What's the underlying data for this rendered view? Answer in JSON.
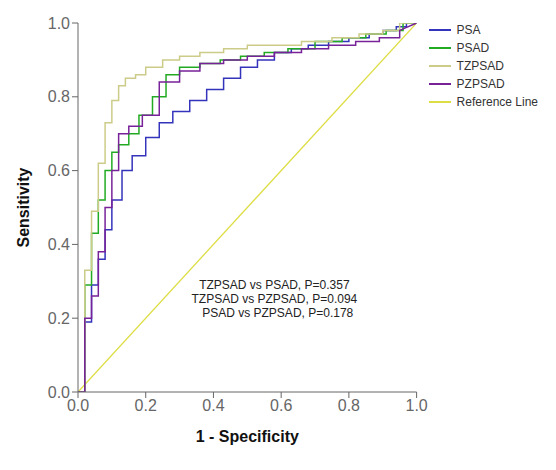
{
  "chart_data": {
    "type": "line",
    "title": "",
    "xlabel": "1 - Specificity",
    "ylabel": "Sensitivity",
    "xlim": [
      0.0,
      1.0
    ],
    "ylim": [
      0.0,
      1.0
    ],
    "xticks": [
      {
        "value": 0.0,
        "label": "0.0"
      },
      0.2,
      0.4,
      0.6,
      0.8,
      {
        "value": 1.0,
        "label": "1.0"
      }
    ],
    "yticks": [
      {
        "value": 0.0,
        "label": "0.0"
      },
      0.2,
      0.4,
      0.6,
      0.8,
      {
        "value": 1.0,
        "label": "1.0"
      }
    ],
    "grid": false,
    "legend": "right",
    "annotations": [
      {
        "text": "TZPSAD vs PSAD, P=0.357\nTZPSAD vs PZPSAD, P=0.094\n  PSAD vs PZPSAD, P=0.178",
        "x": 0.58,
        "y": 0.25
      }
    ],
    "series": [
      {
        "name": "PSA",
        "color": "#3333bb",
        "x": [
          0.0,
          0.02,
          0.02,
          0.04,
          0.04,
          0.06,
          0.06,
          0.08,
          0.08,
          0.1,
          0.1,
          0.13,
          0.13,
          0.16,
          0.16,
          0.2,
          0.2,
          0.24,
          0.24,
          0.28,
          0.28,
          0.33,
          0.33,
          0.38,
          0.38,
          0.43,
          0.43,
          0.48,
          0.48,
          0.53,
          0.53,
          0.58,
          0.58,
          0.63,
          0.63,
          0.68,
          0.68,
          0.74,
          0.74,
          0.8,
          0.8,
          0.86,
          0.86,
          0.9,
          0.9,
          0.94,
          0.94,
          0.97,
          0.97,
          1.0
        ],
        "values": [
          0.0,
          0.0,
          0.19,
          0.19,
          0.29,
          0.29,
          0.36,
          0.36,
          0.44,
          0.44,
          0.52,
          0.52,
          0.6,
          0.6,
          0.64,
          0.64,
          0.69,
          0.69,
          0.73,
          0.73,
          0.76,
          0.76,
          0.79,
          0.79,
          0.82,
          0.82,
          0.85,
          0.85,
          0.88,
          0.88,
          0.9,
          0.9,
          0.92,
          0.92,
          0.93,
          0.93,
          0.94,
          0.94,
          0.95,
          0.95,
          0.96,
          0.96,
          0.97,
          0.97,
          0.98,
          0.98,
          0.99,
          0.99,
          1.0,
          1.0
        ]
      },
      {
        "name": "PSAD",
        "color": "#22aa22",
        "x": [
          0.0,
          0.02,
          0.02,
          0.04,
          0.04,
          0.06,
          0.06,
          0.08,
          0.08,
          0.1,
          0.1,
          0.12,
          0.12,
          0.15,
          0.15,
          0.18,
          0.18,
          0.22,
          0.22,
          0.26,
          0.26,
          0.3,
          0.3,
          0.36,
          0.36,
          0.42,
          0.42,
          0.48,
          0.48,
          0.55,
          0.55,
          0.62,
          0.62,
          0.7,
          0.7,
          0.78,
          0.78,
          0.85,
          0.85,
          0.91,
          0.91,
          0.96,
          0.96,
          1.0
        ],
        "values": [
          0.0,
          0.0,
          0.29,
          0.29,
          0.43,
          0.43,
          0.52,
          0.52,
          0.6,
          0.6,
          0.65,
          0.65,
          0.67,
          0.67,
          0.7,
          0.7,
          0.75,
          0.75,
          0.8,
          0.8,
          0.86,
          0.86,
          0.88,
          0.88,
          0.89,
          0.89,
          0.9,
          0.9,
          0.91,
          0.91,
          0.92,
          0.92,
          0.93,
          0.93,
          0.95,
          0.95,
          0.96,
          0.96,
          0.97,
          0.97,
          0.98,
          0.98,
          1.0,
          1.0
        ]
      },
      {
        "name": "TZPSAD",
        "color": "#cccc88",
        "x": [
          0.0,
          0.02,
          0.02,
          0.04,
          0.04,
          0.06,
          0.06,
          0.08,
          0.08,
          0.1,
          0.1,
          0.12,
          0.12,
          0.14,
          0.14,
          0.17,
          0.17,
          0.2,
          0.2,
          0.25,
          0.25,
          0.3,
          0.3,
          0.36,
          0.36,
          0.43,
          0.43,
          0.5,
          0.5,
          0.58,
          0.58,
          0.66,
          0.66,
          0.75,
          0.75,
          0.83,
          0.83,
          0.9,
          0.9,
          0.95,
          0.95,
          1.0
        ],
        "values": [
          0.0,
          0.0,
          0.33,
          0.33,
          0.49,
          0.49,
          0.62,
          0.62,
          0.73,
          0.73,
          0.79,
          0.79,
          0.83,
          0.83,
          0.85,
          0.85,
          0.86,
          0.86,
          0.88,
          0.88,
          0.9,
          0.9,
          0.91,
          0.91,
          0.92,
          0.92,
          0.93,
          0.93,
          0.94,
          0.94,
          0.94,
          0.94,
          0.95,
          0.95,
          0.96,
          0.96,
          0.97,
          0.97,
          0.98,
          0.98,
          1.0,
          1.0
        ]
      },
      {
        "name": "PZPSAD",
        "color": "#772299",
        "x": [
          0.0,
          0.02,
          0.02,
          0.04,
          0.04,
          0.06,
          0.06,
          0.08,
          0.08,
          0.1,
          0.1,
          0.12,
          0.12,
          0.15,
          0.15,
          0.19,
          0.19,
          0.24,
          0.24,
          0.3,
          0.3,
          0.36,
          0.36,
          0.43,
          0.43,
          0.5,
          0.5,
          0.58,
          0.58,
          0.66,
          0.66,
          0.74,
          0.74,
          0.82,
          0.82,
          0.89,
          0.89,
          0.95,
          0.95,
          1.0
        ],
        "values": [
          0.0,
          0.0,
          0.2,
          0.2,
          0.26,
          0.26,
          0.38,
          0.38,
          0.5,
          0.5,
          0.6,
          0.6,
          0.7,
          0.7,
          0.72,
          0.72,
          0.75,
          0.75,
          0.84,
          0.84,
          0.87,
          0.87,
          0.89,
          0.89,
          0.9,
          0.9,
          0.91,
          0.91,
          0.92,
          0.92,
          0.93,
          0.93,
          0.94,
          0.94,
          0.95,
          0.95,
          0.96,
          0.96,
          0.98,
          1.0
        ]
      },
      {
        "name": "Reference Line",
        "color": "#dddd44",
        "x": [
          0,
          1
        ],
        "values": [
          0,
          1
        ]
      }
    ]
  }
}
